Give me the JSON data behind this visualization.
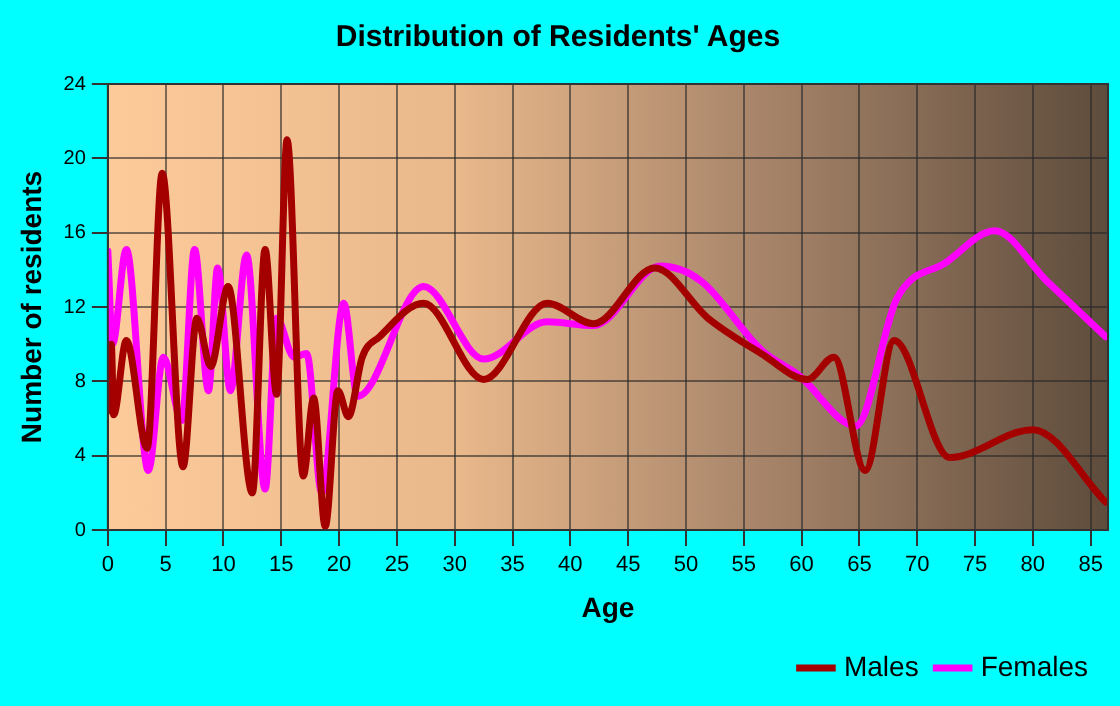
{
  "chart_data": {
    "type": "line",
    "title": "Distribution of Residents' Ages",
    "xlabel": "Age",
    "ylabel": "Number of residents",
    "xlim": [
      0,
      86.5
    ],
    "xticks": [
      0,
      5,
      10,
      15,
      20,
      25,
      30,
      35,
      40,
      45,
      50,
      55,
      60,
      65,
      70,
      75,
      80,
      85
    ],
    "ylim": [
      0,
      24
    ],
    "yticks": [
      0,
      4,
      8,
      12,
      16,
      20,
      24
    ],
    "grid": true,
    "legend": "bottom right",
    "marker": "none",
    "line_style": "solid",
    "series": [
      {
        "name": "Males",
        "color": "#a50000",
        "x": [
          0,
          0.3,
          0.5,
          1.6,
          3.4,
          4.7,
          6.5,
          7.7,
          8.9,
          10.4,
          12.5,
          13.6,
          14.6,
          15.5,
          16.9,
          17.8,
          18.8,
          19.9,
          20.8,
          22,
          23.5,
          27.3,
          32.5,
          38,
          42,
          47.3,
          51.9,
          56.5,
          60.5,
          62.8,
          65.5,
          68,
          72.8,
          80,
          86.3
        ],
        "values": [
          6.4,
          10,
          6.2,
          10.2,
          4.4,
          19.2,
          3.4,
          11.4,
          8.8,
          13.1,
          2,
          15.1,
          7.3,
          21,
          2.9,
          7.1,
          0.2,
          7.5,
          6.1,
          9.3,
          10.4,
          12.2,
          8.1,
          12.2,
          11.1,
          14.1,
          11.4,
          9.5,
          8.1,
          9.3,
          3.2,
          10.2,
          3.9,
          5.4,
          1.5
        ]
      },
      {
        "name": "Females",
        "color": "#ff00ff",
        "x": [
          0,
          0.4,
          1.6,
          3.5,
          4.8,
          6.4,
          7.5,
          8.7,
          9.5,
          10.6,
          12,
          13.6,
          14.6,
          16.1,
          17.2,
          18.5,
          20.4,
          21.6,
          27.3,
          32.5,
          38,
          42,
          47.8,
          51.3,
          56.5,
          59.8,
          64.7,
          68.2,
          72.5,
          76.7,
          81.2,
          86.3
        ],
        "values": [
          15,
          10,
          15.1,
          3.2,
          9.3,
          5.9,
          15.1,
          7.5,
          14.1,
          7.5,
          14.8,
          2.2,
          11.4,
          9.3,
          9.5,
          2,
          12.2,
          7.2,
          13.1,
          9.2,
          11.2,
          11,
          14.2,
          13.4,
          9.7,
          8.3,
          5.6,
          12.4,
          14.4,
          16.1,
          13.4,
          10.4
        ]
      }
    ]
  }
}
